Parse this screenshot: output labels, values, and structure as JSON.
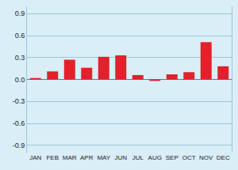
{
  "chart_data": {
    "type": "bar",
    "categories": [
      "JAN",
      "FEB",
      "MAR",
      "APR",
      "MAY",
      "JUN",
      "JUL",
      "AUG",
      "SEP",
      "OCT",
      "NOV",
      "DEC"
    ],
    "values": [
      0.02,
      0.11,
      0.27,
      0.16,
      0.31,
      0.33,
      0.06,
      -0.02,
      0.07,
      0.1,
      0.51,
      0.18
    ],
    "color": "#e3202b",
    "ylim": [
      -1.0,
      1.0
    ],
    "yticks": [
      0.9,
      0.6,
      0.3,
      {
        "value": 0,
        "label": "0.0"
      },
      -0.3,
      -0.6,
      -0.9
    ],
    "grid": true
  }
}
